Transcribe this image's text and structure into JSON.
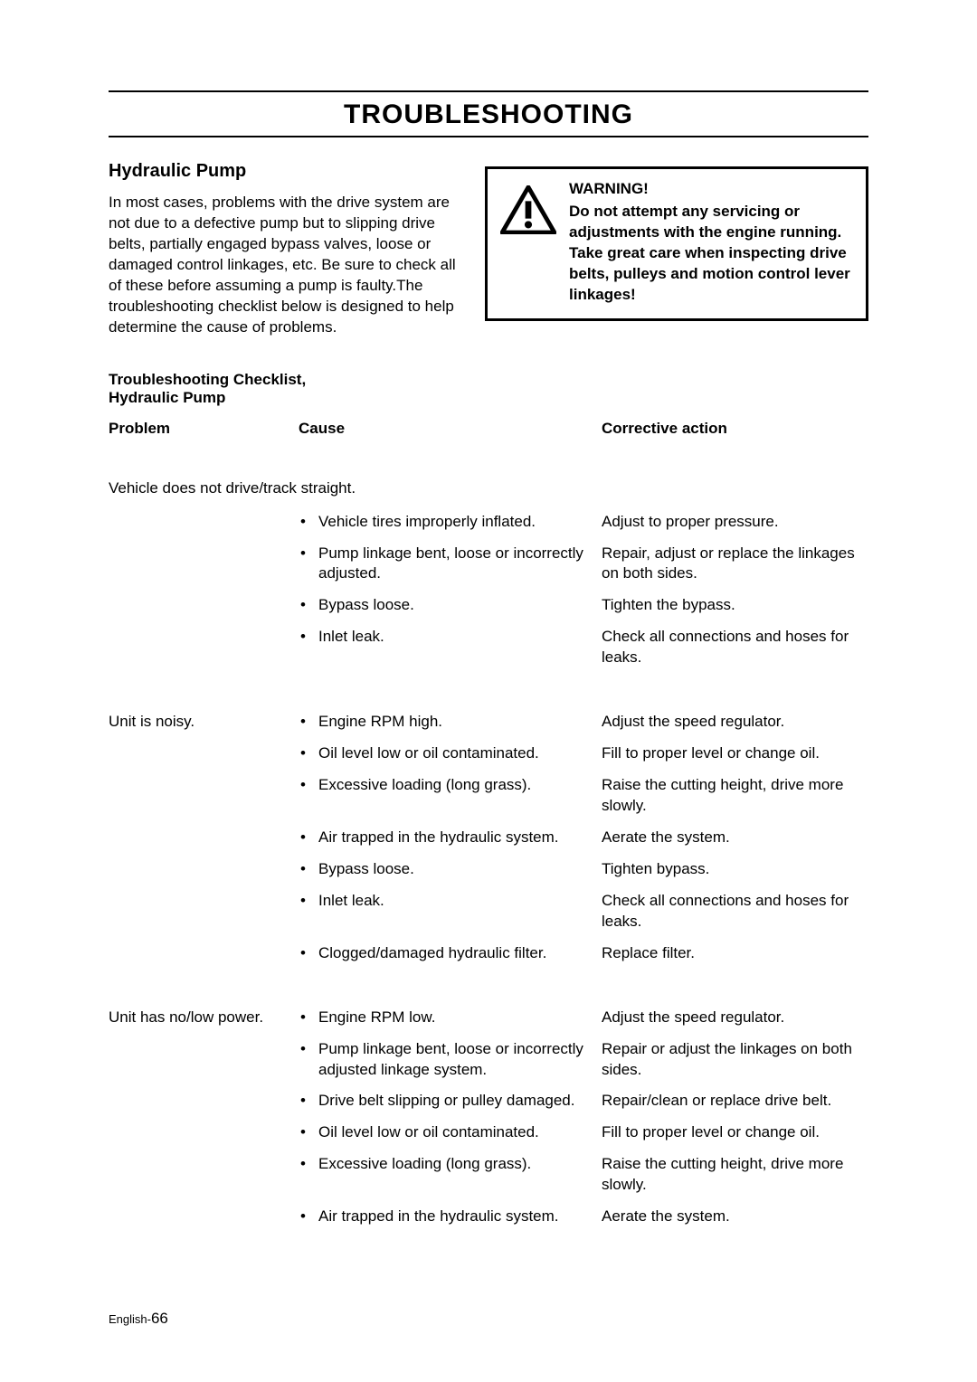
{
  "page_title": "TROUBLESHOOTING",
  "section_heading": "Hydraulic Pump",
  "intro": "In most cases, problems with the drive system are not due to a defective pump but to slipping drive belts, partially engaged bypass valves, loose or damaged control linkages, etc. Be sure to check all of these before assuming a pump is faulty.The troubleshooting checklist below is designed to help determine the cause of problems.",
  "warning": {
    "title": "WARNING!",
    "body": "Do not attempt any servicing or adjustments with the engine running. Take great care when inspecting drive belts, pulleys and motion control lever linkages!"
  },
  "checklist_title": "Troubleshooting Checklist, Hydraulic Pump",
  "headers": {
    "problem": "Problem",
    "cause": "Cause",
    "action": "Corrective action"
  },
  "groups": [
    {
      "problem": "Vehicle does not drive/track straight.",
      "problem_inline": false,
      "rows": [
        {
          "cause": "Vehicle tires improperly inflated.",
          "action": "Adjust to proper pressure."
        },
        {
          "cause": "Pump linkage bent, loose or incorrectly adjusted.",
          "action": "Repair, adjust or replace the linkages on both sides."
        },
        {
          "cause": "Bypass loose.",
          "action": "Tighten the bypass."
        },
        {
          "cause": "Inlet leak.",
          "action": "Check all connections and hoses for leaks."
        }
      ]
    },
    {
      "problem": "Unit is noisy.",
      "problem_inline": true,
      "rows": [
        {
          "cause": "Engine RPM high.",
          "action": "Adjust the speed regulator."
        },
        {
          "cause": "Oil level low or oil contaminated.",
          "action": "Fill to proper level or change oil."
        },
        {
          "cause": "Excessive loading (long grass).",
          "action": "Raise the cutting height, drive more slowly."
        },
        {
          "cause": "Air trapped in the hydraulic system.",
          "action": "Aerate the system."
        },
        {
          "cause": "Bypass loose.",
          "action": "Tighten bypass."
        },
        {
          "cause": "Inlet leak.",
          "action": "Check all connections and hoses for leaks."
        },
        {
          "cause": "Clogged/damaged hydraulic filter.",
          "action": "Replace filter."
        }
      ]
    },
    {
      "problem": "Unit has no/low power.",
      "problem_inline": true,
      "rows": [
        {
          "cause": "Engine RPM low.",
          "action": "Adjust the speed regulator."
        },
        {
          "cause": "Pump linkage bent, loose or incorrectly adjusted linkage system.",
          "action": "Repair or adjust the linkages on both sides."
        },
        {
          "cause": "Drive belt slipping or pulley damaged.",
          "action": "Repair/clean or replace drive belt."
        },
        {
          "cause": "Oil level low or oil contaminated.",
          "action": "Fill to proper level or change oil."
        },
        {
          "cause": "Excessive loading (long grass).",
          "action": "Raise the cutting height, drive more slowly."
        },
        {
          "cause": "Air trapped in the hydraulic system.",
          "action": "Aerate the system."
        }
      ]
    }
  ],
  "footer": {
    "lang": "English-",
    "page": "66"
  },
  "style": {
    "page_bg": "#ffffff",
    "text_color": "#000000",
    "rule_color": "#000000",
    "body_fontsize": 17,
    "title_fontsize": 30,
    "heading_fontsize": 20,
    "col_widths": {
      "problem": 210,
      "cause": 335
    }
  }
}
